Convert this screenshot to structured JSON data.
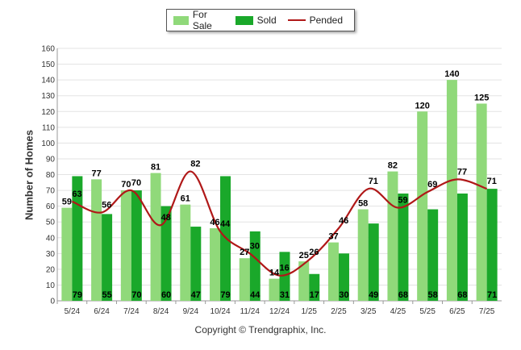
{
  "chart_data": {
    "type": "bar",
    "ylabel": "Number of Homes",
    "xlabel": "",
    "ylim": [
      0,
      160
    ],
    "ytick_step": 10,
    "grid": true,
    "legend_placement": "top-center",
    "categories": [
      "5/24",
      "6/24",
      "7/24",
      "8/24",
      "9/24",
      "10/24",
      "11/24",
      "12/24",
      "1/25",
      "2/25",
      "3/25",
      "4/25",
      "5/25",
      "6/25",
      "7/25"
    ],
    "series": [
      {
        "name": "For Sale",
        "kind": "bar",
        "color": "#90d97a",
        "values": [
          59,
          77,
          70,
          81,
          61,
          46,
          27,
          14,
          25,
          37,
          58,
          82,
          120,
          140,
          125
        ]
      },
      {
        "name": "Sold",
        "kind": "bar",
        "color": "#1aa82a",
        "values": [
          79,
          55,
          70,
          60,
          47,
          79,
          44,
          31,
          17,
          30,
          49,
          68,
          58,
          68,
          71
        ]
      },
      {
        "name": "Pended",
        "kind": "line",
        "color": "#b01818",
        "values": [
          63,
          56,
          70,
          48,
          82,
          44,
          30,
          16,
          26,
          46,
          71,
          59,
          69,
          77,
          71
        ]
      }
    ]
  },
  "copyright": "Copyright © Trendgraphix, Inc."
}
